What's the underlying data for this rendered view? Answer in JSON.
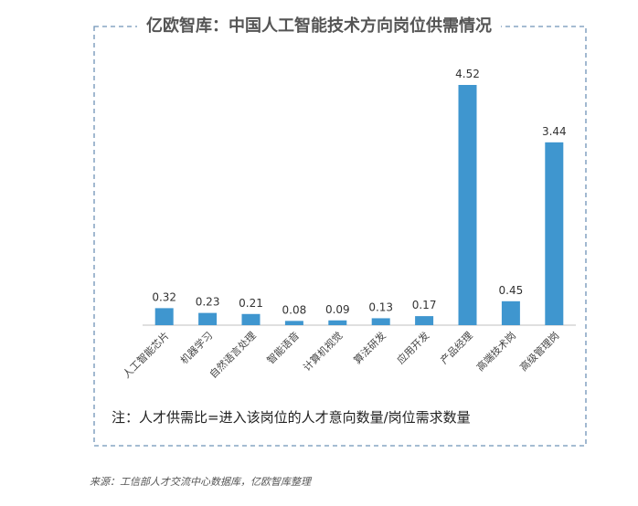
{
  "title": "亿欧智库：中国人工智能技术方向岗位供需情况",
  "note": "注：人才供需比=进入该岗位的人才意向数量/岗位需求数量",
  "source": "来源：工信部人才交流中心数据库，亿欧智库整理",
  "colors": {
    "bar": "#3f96cf",
    "frame": "#6f93b7",
    "axis": "#bfbfbf"
  },
  "chart_data": {
    "type": "bar",
    "title": "亿欧智库：中国人工智能技术方向岗位供需情况",
    "categories": [
      "人工智能芯片",
      "机器学习",
      "自然语言处理",
      "智能语音",
      "计算机视觉",
      "算法研发",
      "应用开发",
      "产品经理",
      "高端技术岗",
      "高级管理岗"
    ],
    "values": [
      0.32,
      0.23,
      0.21,
      0.08,
      0.09,
      0.13,
      0.17,
      4.52,
      0.45,
      3.44
    ],
    "data_labels": [
      "0.32",
      "0.23",
      "0.21",
      "0.08",
      "0.09",
      "0.13",
      "0.17",
      "4.52",
      "0.45",
      "3.44"
    ],
    "ylim": [
      0,
      4.52
    ],
    "grid": false,
    "legend": "none"
  }
}
